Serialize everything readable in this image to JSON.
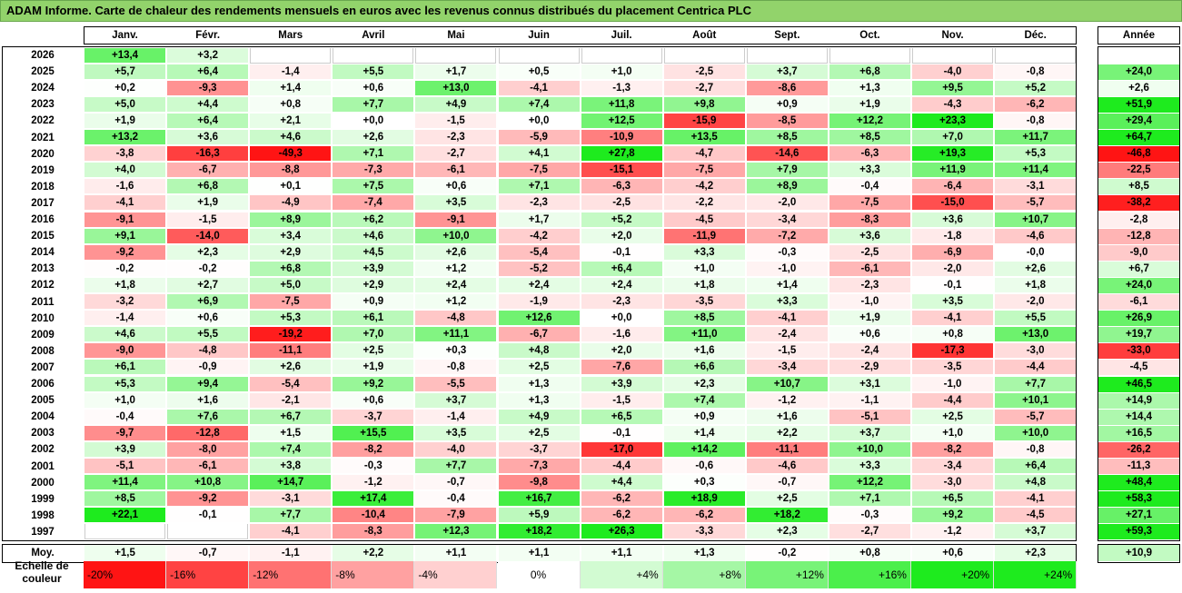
{
  "title": "ADAM Informe. Carte de chaleur des rendements mensuels en euros avec les revenus connus distribués du placement Centrica PLC",
  "chart_data": {
    "type": "heatmap",
    "months": [
      "Janv.",
      "Févr.",
      "Mars",
      "Avril",
      "Mai",
      "Juin",
      "Juil.",
      "Août",
      "Sept.",
      "Oct.",
      "Nov.",
      "Déc."
    ],
    "year_header": "Année",
    "rows": [
      {
        "year": "2026",
        "m": [
          13.4,
          3.2,
          null,
          null,
          null,
          null,
          null,
          null,
          null,
          null,
          null,
          null
        ],
        "y": null
      },
      {
        "year": "2025",
        "m": [
          5.7,
          6.4,
          -1.4,
          5.5,
          1.7,
          0.5,
          1.0,
          -2.5,
          3.7,
          6.8,
          -4.0,
          -0.8
        ],
        "y": 24.0
      },
      {
        "year": "2024",
        "m": [
          0.2,
          -9.3,
          1.4,
          0.6,
          13.0,
          -4.1,
          -1.3,
          -2.7,
          -8.6,
          1.3,
          9.5,
          5.2
        ],
        "y": 2.6
      },
      {
        "year": "2023",
        "m": [
          5.0,
          4.4,
          0.8,
          7.7,
          4.9,
          7.4,
          11.8,
          9.8,
          0.9,
          1.9,
          -4.3,
          -6.2
        ],
        "y": 51.9
      },
      {
        "year": "2022",
        "m": [
          1.9,
          6.4,
          2.1,
          0.0,
          -1.5,
          0.0,
          12.5,
          -15.9,
          -8.5,
          12.2,
          23.3,
          -0.8
        ],
        "y": 29.4
      },
      {
        "year": "2021",
        "m": [
          13.2,
          3.6,
          4.6,
          2.6,
          -2.3,
          -5.9,
          -10.9,
          13.5,
          8.5,
          8.5,
          7.0,
          11.7
        ],
        "y": 64.7
      },
      {
        "year": "2020",
        "m": [
          -3.8,
          -16.3,
          -49.3,
          7.1,
          -2.7,
          4.1,
          27.8,
          -4.7,
          -14.6,
          -6.3,
          19.3,
          5.3
        ],
        "y": -46.8
      },
      {
        "year": "2019",
        "m": [
          4.0,
          -6.7,
          -8.8,
          -7.3,
          -6.1,
          -7.5,
          -15.1,
          -7.5,
          7.9,
          3.3,
          11.9,
          11.4
        ],
        "y": -22.5
      },
      {
        "year": "2018",
        "m": [
          -1.6,
          6.8,
          0.1,
          7.5,
          0.6,
          7.1,
          -6.3,
          -4.2,
          8.9,
          -0.4,
          -6.4,
          -3.1
        ],
        "y": 8.5
      },
      {
        "year": "2017",
        "m": [
          -4.1,
          1.9,
          -4.9,
          -7.4,
          3.5,
          -2.3,
          -2.5,
          -2.2,
          -2.0,
          -7.5,
          -15.0,
          -5.7
        ],
        "y": -38.2
      },
      {
        "year": "2016",
        "m": [
          -9.1,
          -1.5,
          8.9,
          6.2,
          -9.1,
          1.7,
          5.2,
          -4.5,
          -3.4,
          -8.3,
          3.6,
          10.7
        ],
        "y": -2.8
      },
      {
        "year": "2015",
        "m": [
          9.1,
          -14.0,
          3.4,
          4.6,
          10.0,
          -4.2,
          2.0,
          -11.9,
          -7.2,
          3.6,
          -1.8,
          -4.6
        ],
        "y": -12.8
      },
      {
        "year": "2014",
        "m": [
          -9.2,
          2.3,
          2.9,
          4.5,
          2.6,
          -5.4,
          -0.1,
          3.3,
          -0.3,
          -2.5,
          -6.9,
          -0.0
        ],
        "y": -9.0
      },
      {
        "year": "2013",
        "m": [
          -0.2,
          -0.2,
          6.8,
          3.9,
          1.2,
          -5.2,
          6.4,
          1.0,
          -1.0,
          -6.1,
          -2.0,
          2.6
        ],
        "y": 6.7
      },
      {
        "year": "2012",
        "m": [
          1.8,
          2.7,
          5.0,
          2.9,
          2.4,
          2.4,
          2.4,
          1.8,
          1.4,
          -2.3,
          -0.1,
          1.8
        ],
        "y": 24.0
      },
      {
        "year": "2011",
        "m": [
          -3.2,
          6.9,
          -7.5,
          0.9,
          1.2,
          -1.9,
          -2.3,
          -3.5,
          3.3,
          -1.0,
          3.5,
          -2.0
        ],
        "y": -6.1
      },
      {
        "year": "2010",
        "m": [
          -1.4,
          0.6,
          5.3,
          6.1,
          -4.8,
          12.6,
          0.0,
          8.5,
          -4.1,
          1.9,
          -4.1,
          5.5
        ],
        "y": 26.9
      },
      {
        "year": "2009",
        "m": [
          4.6,
          5.5,
          -19.2,
          7.0,
          11.1,
          -6.7,
          -1.6,
          11.0,
          -2.4,
          0.6,
          0.8,
          13.0
        ],
        "y": 19.7
      },
      {
        "year": "2008",
        "m": [
          -9.0,
          -4.8,
          -11.1,
          2.5,
          0.3,
          4.8,
          2.0,
          1.6,
          -1.5,
          -2.4,
          -17.3,
          -3.0
        ],
        "y": -33.0
      },
      {
        "year": "2007",
        "m": [
          6.1,
          -0.9,
          2.6,
          1.9,
          -0.8,
          2.5,
          -7.6,
          6.6,
          -3.4,
          -2.9,
          -3.5,
          -4.4
        ],
        "y": -4.5
      },
      {
        "year": "2006",
        "m": [
          5.3,
          9.4,
          -5.4,
          9.2,
          -5.5,
          1.3,
          3.9,
          2.3,
          10.7,
          3.1,
          -1.0,
          7.7
        ],
        "y": 46.5
      },
      {
        "year": "2005",
        "m": [
          1.0,
          1.6,
          -2.1,
          0.6,
          3.7,
          1.3,
          -1.5,
          7.4,
          -1.2,
          -1.1,
          -4.4,
          10.1
        ],
        "y": 14.9
      },
      {
        "year": "2004",
        "m": [
          -0.4,
          7.6,
          6.7,
          -3.7,
          -1.4,
          4.9,
          6.5,
          0.9,
          1.6,
          -5.1,
          2.5,
          -5.7
        ],
        "y": 14.4
      },
      {
        "year": "2003",
        "m": [
          -9.7,
          -12.8,
          1.5,
          15.5,
          3.5,
          2.5,
          -0.1,
          1.4,
          2.2,
          3.7,
          1.0,
          10.0
        ],
        "y": 16.5
      },
      {
        "year": "2002",
        "m": [
          3.9,
          -8.0,
          7.4,
          -8.2,
          -4.0,
          -3.7,
          -17.0,
          14.2,
          -11.1,
          10.0,
          -8.2,
          -0.8
        ],
        "y": -26.2
      },
      {
        "year": "2001",
        "m": [
          -5.1,
          -6.1,
          3.8,
          -0.3,
          7.7,
          -7.3,
          -4.4,
          -0.6,
          -4.6,
          3.3,
          -3.4,
          6.4
        ],
        "y": -11.3
      },
      {
        "year": "2000",
        "m": [
          11.4,
          10.8,
          14.7,
          -1.2,
          -0.7,
          -9.8,
          4.4,
          0.3,
          -0.7,
          12.2,
          -3.0,
          4.8
        ],
        "y": 48.4
      },
      {
        "year": "1999",
        "m": [
          8.5,
          -9.2,
          -3.1,
          17.4,
          -0.4,
          16.7,
          -6.2,
          18.9,
          2.5,
          7.1,
          6.5,
          -4.1
        ],
        "y": 58.3
      },
      {
        "year": "1998",
        "m": [
          22.1,
          -0.1,
          7.7,
          -10.4,
          -7.9,
          5.9,
          -6.2,
          -6.2,
          18.2,
          -0.3,
          9.2,
          -4.5
        ],
        "y": 27.1
      },
      {
        "year": "1997",
        "m": [
          null,
          null,
          -4.1,
          -8.3,
          12.3,
          18.2,
          26.3,
          -3.3,
          2.3,
          -2.7,
          -1.2,
          3.7
        ],
        "y": 59.3
      }
    ],
    "average": {
      "label": "Moy.",
      "m": [
        1.5,
        -0.7,
        -1.1,
        2.2,
        1.1,
        1.1,
        1.1,
        1.3,
        -0.2,
        0.8,
        0.6,
        2.3
      ],
      "y": 10.9
    },
    "scale": {
      "label": "Echelle de couleur",
      "stops": [
        "-20%",
        "-16%",
        "-12%",
        "-8%",
        "-4%",
        "0%",
        "+4%",
        "+8%",
        "+12%",
        "+16%",
        "+20%",
        "+24%"
      ]
    }
  }
}
